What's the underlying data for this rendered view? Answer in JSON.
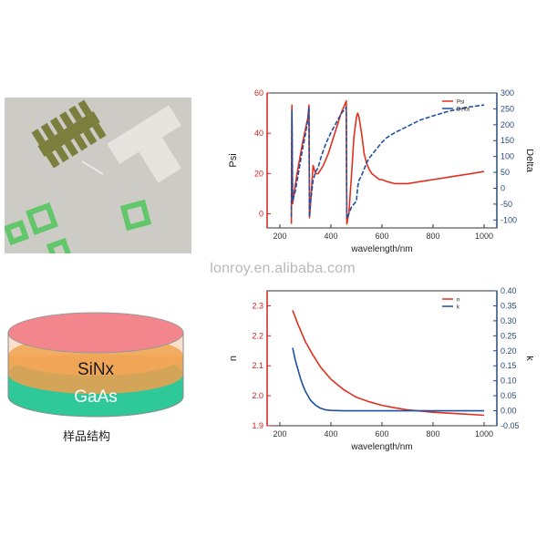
{
  "watermark": "lonroy.en.alibaba.com",
  "sample": {
    "caption": "样品结构",
    "layers": [
      "SiNx",
      "GaAs"
    ],
    "colors": {
      "top": "#f2868c",
      "sinx": "#efa050",
      "gaas": "#2fc898"
    }
  },
  "colors": {
    "red": "#e0301e",
    "blue": "#1f4fa0",
    "axis": "#2a4a7a",
    "leftAxis": "#d02020"
  },
  "chart_data": [
    {
      "type": "line",
      "xlabel": "wavelength/nm",
      "ylabel": "Psi",
      "y2label": "Delta",
      "xlim": [
        150,
        1050
      ],
      "ylim": [
        -7,
        60
      ],
      "y2lim": [
        -125,
        300
      ],
      "xticks": [
        200,
        400,
        600,
        800,
        1000
      ],
      "yticks": [
        0,
        20,
        40,
        60
      ],
      "y2ticks": [
        -100,
        -50,
        0,
        50,
        100,
        150,
        200,
        250,
        300
      ],
      "legend_position": "top-right",
      "series": [
        {
          "name": "Psi",
          "axis": "left",
          "color": "#e0301e",
          "x": [
            245,
            247,
            250,
            260,
            270,
            280,
            290,
            300,
            310,
            314,
            316,
            320,
            330,
            340,
            350,
            360,
            370,
            380,
            390,
            400,
            410,
            420,
            430,
            440,
            450,
            460,
            462,
            465,
            470,
            480,
            490,
            500,
            505,
            510,
            520,
            530,
            540,
            550,
            560,
            570,
            580,
            590,
            600,
            620,
            650,
            700,
            750,
            800,
            850,
            900,
            950,
            1000
          ],
          "y": [
            -5,
            54,
            5,
            14,
            22,
            29,
            36,
            42,
            48,
            54,
            -2,
            5,
            24,
            20,
            20,
            22,
            24,
            27,
            30,
            34,
            38,
            42,
            46,
            50,
            53,
            56,
            -5,
            -3,
            0,
            18,
            38,
            48,
            50,
            48,
            40,
            30,
            25,
            22,
            20,
            19,
            18,
            17,
            17,
            16,
            15,
            15,
            16,
            17,
            18,
            19,
            20,
            21
          ]
        },
        {
          "name": "Delta",
          "axis": "right",
          "color": "#1f4fa0",
          "x": [
            245,
            247,
            250,
            260,
            270,
            280,
            290,
            300,
            310,
            314,
            316,
            320,
            330,
            340,
            350,
            360,
            370,
            380,
            390,
            400,
            410,
            420,
            430,
            440,
            450,
            460,
            462,
            465,
            470,
            480,
            490,
            500,
            505,
            510,
            520,
            530,
            540,
            550,
            560,
            570,
            580,
            590,
            600,
            620,
            650,
            700,
            750,
            800,
            850,
            900,
            950,
            1000
          ],
          "y": [
            -90,
            245,
            -40,
            -10,
            35,
            82,
            128,
            170,
            218,
            255,
            -90,
            -45,
            25,
            52,
            65,
            95,
            118,
            140,
            158,
            175,
            190,
            205,
            220,
            235,
            245,
            255,
            -95,
            -90,
            -80,
            -60,
            -50,
            -40,
            5,
            25,
            40,
            60,
            80,
            95,
            105,
            115,
            125,
            135,
            145,
            160,
            175,
            195,
            215,
            228,
            240,
            250,
            257,
            262
          ]
        }
      ]
    },
    {
      "type": "line",
      "xlabel": "wavelength/nm",
      "ylabel": "n",
      "y2label": "k",
      "xlim": [
        150,
        1050
      ],
      "ylim": [
        1.9,
        2.35
      ],
      "y2lim": [
        -0.05,
        0.4
      ],
      "xticks": [
        200,
        400,
        600,
        800,
        1000
      ],
      "yticks": [
        1.9,
        2.0,
        2.1,
        2.2,
        2.3
      ],
      "y2ticks": [
        -0.05,
        0.0,
        0.05,
        0.1,
        0.15,
        0.2,
        0.25,
        0.3,
        0.35,
        0.4
      ],
      "legend_position": "top-right",
      "series": [
        {
          "name": "n",
          "axis": "left",
          "color": "#e0301e",
          "x": [
            250,
            270,
            300,
            330,
            360,
            400,
            450,
            500,
            550,
            600,
            650,
            700,
            800,
            900,
            1000
          ],
          "y": [
            2.285,
            2.24,
            2.18,
            2.135,
            2.095,
            2.055,
            2.02,
            1.995,
            1.98,
            1.968,
            1.96,
            1.953,
            1.945,
            1.94,
            1.935
          ]
        },
        {
          "name": "k",
          "axis": "right",
          "color": "#1f4fa0",
          "x": [
            250,
            260,
            270,
            280,
            290,
            300,
            320,
            340,
            360,
            380,
            400,
            450,
            500,
            600,
            700,
            800,
            900,
            1000
          ],
          "y": [
            0.21,
            0.17,
            0.14,
            0.11,
            0.085,
            0.065,
            0.035,
            0.018,
            0.008,
            0.003,
            0.001,
            0.0,
            0.0,
            0.0,
            0.0,
            0.0,
            0.0,
            0.0
          ]
        }
      ]
    }
  ]
}
